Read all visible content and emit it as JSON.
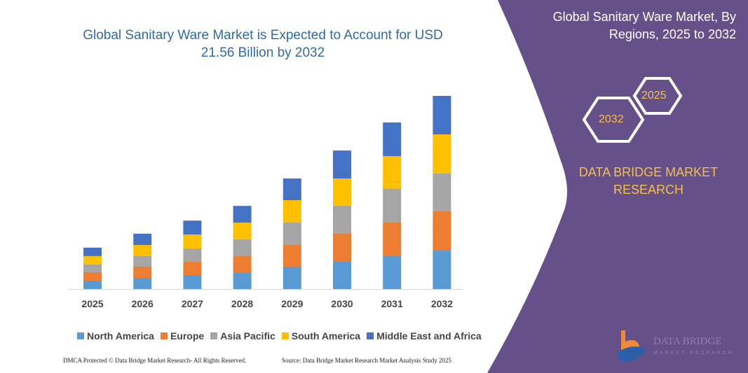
{
  "title": "Global Sanitary Ware Market is Expected to Account for USD 21.56 Billion by 2032",
  "right_panel": {
    "title": "Global Sanitary Ware Market, By Regions, 2025 to 2032",
    "hex_top": "2025",
    "hex_bottom": "2032",
    "brand": "DATA BRIDGE MARKET RESEARCH",
    "logo_text": "DATA BRIDGE MARKET RESEARCH",
    "bg_color": "#65508a"
  },
  "footer": {
    "left": "DMCA Protected © Data Bridge Market Research- All Rights Reserved.",
    "right": "Source: Data Bridge Market Research Market Analysis Study 2025"
  },
  "chart_data": {
    "type": "bar",
    "stacked": true,
    "categories": [
      "2025",
      "2026",
      "2027",
      "2028",
      "2029",
      "2030",
      "2031",
      "2032"
    ],
    "series": [
      {
        "name": "North America",
        "color": "#5b9bd5",
        "values": [
          0.94,
          1.25,
          1.56,
          1.87,
          2.5,
          3.05,
          3.67,
          4.3
        ]
      },
      {
        "name": "Europe",
        "color": "#ed7d31",
        "values": [
          0.94,
          1.25,
          1.48,
          1.8,
          2.42,
          3.12,
          3.75,
          4.37
        ]
      },
      {
        "name": "Asia Pacific",
        "color": "#a5a5a5",
        "values": [
          0.86,
          1.17,
          1.48,
          1.87,
          2.5,
          3.12,
          3.75,
          4.22
        ]
      },
      {
        "name": "South America",
        "color": "#ffc000",
        "values": [
          0.94,
          1.25,
          1.56,
          1.87,
          2.5,
          3.05,
          3.67,
          4.37
        ]
      },
      {
        "name": "Middle East and Africa",
        "color": "#4472c4",
        "values": [
          0.94,
          1.25,
          1.56,
          1.87,
          2.42,
          3.12,
          3.75,
          4.3
        ]
      }
    ],
    "ylim": [
      0,
      21.56
    ],
    "grid": false,
    "legend": "bottom"
  }
}
